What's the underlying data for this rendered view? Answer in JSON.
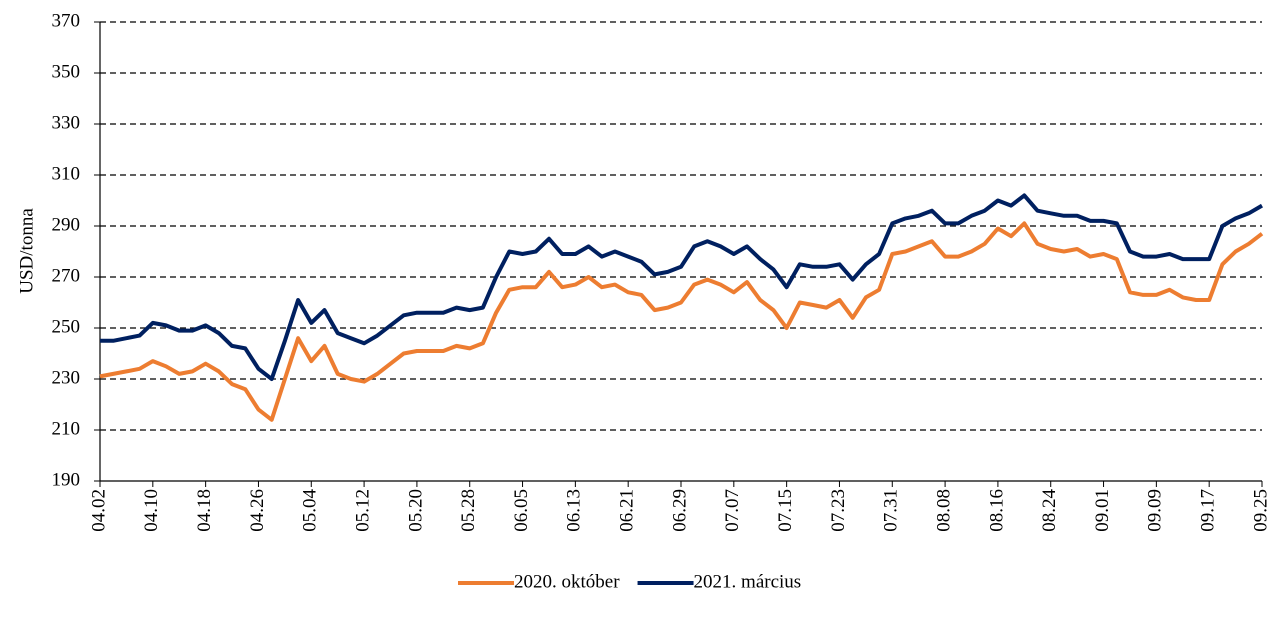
{
  "chart_data": {
    "type": "line",
    "y_label": "USD/tonna",
    "categories": [
      "04.02",
      null,
      null,
      null,
      "04.10",
      null,
      null,
      null,
      "04.18",
      null,
      null,
      null,
      "04.26",
      null,
      null,
      null,
      "05.04",
      null,
      null,
      null,
      "05.12",
      null,
      null,
      null,
      "05.20",
      null,
      null,
      null,
      "05.28",
      null,
      null,
      null,
      "06.05",
      null,
      null,
      null,
      "06.13",
      null,
      null,
      null,
      "06.21",
      null,
      null,
      null,
      "06.29",
      null,
      null,
      null,
      "07.07",
      null,
      null,
      null,
      "07.15",
      null,
      null,
      null,
      "07.23",
      null,
      null,
      null,
      "07.31",
      null,
      null,
      null,
      "08.08",
      null,
      null,
      null,
      "08.16",
      null,
      null,
      null,
      "08.24",
      null,
      null,
      null,
      "09.01",
      null,
      null,
      null,
      "09.09",
      null,
      null,
      null,
      "09.17",
      null,
      null,
      null,
      "09.25"
    ],
    "series": [
      {
        "name": "2020. október",
        "color": "#ed7d31",
        "values": [
          231,
          232,
          233,
          234,
          237,
          235,
          232,
          233,
          236,
          233,
          228,
          226,
          218,
          214,
          230,
          246,
          237,
          243,
          232,
          230,
          229,
          232,
          236,
          240,
          241,
          241,
          241,
          243,
          242,
          244,
          256,
          265,
          266,
          266,
          272,
          266,
          267,
          270,
          266,
          267,
          264,
          263,
          257,
          258,
          260,
          267,
          269,
          267,
          264,
          268,
          261,
          257,
          250,
          260,
          259,
          258,
          261,
          254,
          262,
          265,
          279,
          280,
          282,
          284,
          278,
          278,
          280,
          283,
          289,
          286,
          291,
          283,
          281,
          280,
          281,
          278,
          279,
          277,
          264,
          263,
          263,
          265,
          262,
          261,
          261,
          275,
          280,
          283,
          287
        ]
      },
      {
        "name": "2021. március",
        "color": "#002060",
        "values": [
          245,
          245,
          246,
          247,
          252,
          251,
          249,
          249,
          251,
          248,
          243,
          242,
          234,
          230,
          245,
          261,
          252,
          257,
          248,
          246,
          244,
          247,
          251,
          255,
          256,
          256,
          256,
          258,
          257,
          258,
          270,
          280,
          279,
          280,
          285,
          279,
          279,
          282,
          278,
          280,
          278,
          276,
          271,
          272,
          274,
          282,
          284,
          282,
          279,
          282,
          277,
          273,
          266,
          275,
          274,
          274,
          275,
          269,
          275,
          279,
          291,
          293,
          294,
          296,
          291,
          291,
          294,
          296,
          300,
          298,
          302,
          296,
          295,
          294,
          294,
          292,
          292,
          291,
          280,
          278,
          278,
          279,
          277,
          277,
          277,
          290,
          293,
          295,
          298
        ]
      }
    ],
    "ylim": [
      190,
      370
    ],
    "yticks": [
      190,
      210,
      230,
      250,
      270,
      290,
      310,
      330,
      350,
      370
    ],
    "grid": true,
    "legend": "bottom"
  }
}
